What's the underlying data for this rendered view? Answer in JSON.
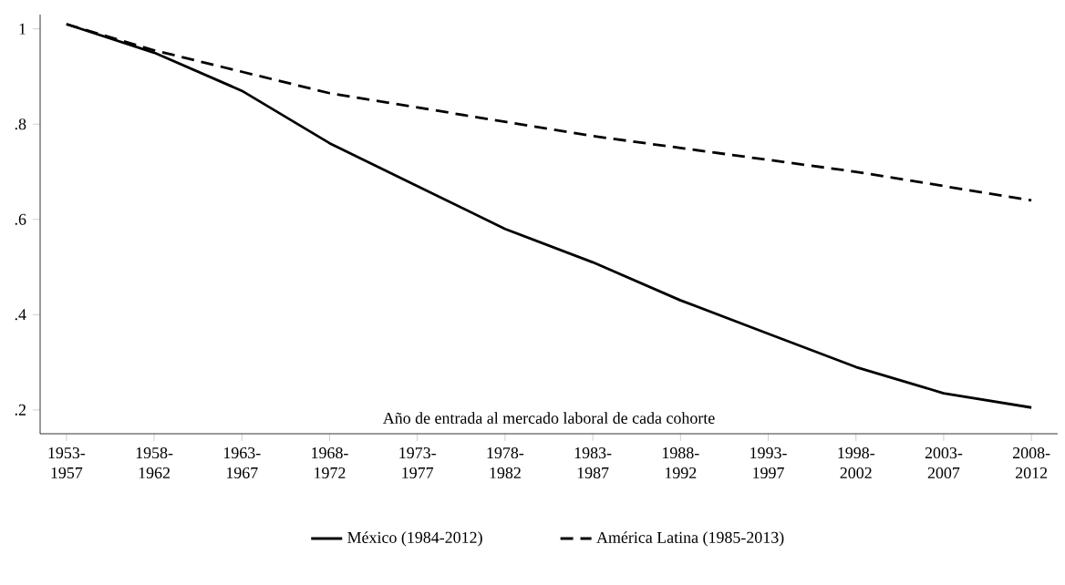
{
  "chart_data": {
    "type": "line",
    "xlabel": "Año de entrada al mercado laboral de cada cohorte",
    "categories": [
      "1953-1957",
      "1958-1962",
      "1963-1967",
      "1968-1972",
      "1973-1977",
      "1978-1982",
      "1983-1987",
      "1988-1992",
      "1993-1997",
      "1998-2002",
      "2003-2007",
      "2008-2012"
    ],
    "series": [
      {
        "name": "México (1984-2012)",
        "color": "#000000",
        "line_style": "solid",
        "values": [
          1.01,
          0.95,
          0.87,
          0.76,
          0.67,
          0.58,
          0.51,
          0.43,
          0.36,
          0.29,
          0.235,
          0.205
        ]
      },
      {
        "name": "América Latina (1985-2013)",
        "color": "#000000",
        "line_style": "dashed",
        "values": [
          1.01,
          0.955,
          0.91,
          0.865,
          0.835,
          0.805,
          0.775,
          0.75,
          0.725,
          0.7,
          0.67,
          0.64
        ]
      }
    ],
    "ylim": [
      0.15,
      1.03
    ],
    "yticks": [
      {
        "value": 0.2,
        "label": ".2"
      },
      {
        "value": 0.4,
        "label": ".4"
      },
      {
        "value": 0.6,
        "label": ".6"
      },
      {
        "value": 0.8,
        "label": ".8"
      },
      1
    ],
    "legend": "bottom"
  }
}
